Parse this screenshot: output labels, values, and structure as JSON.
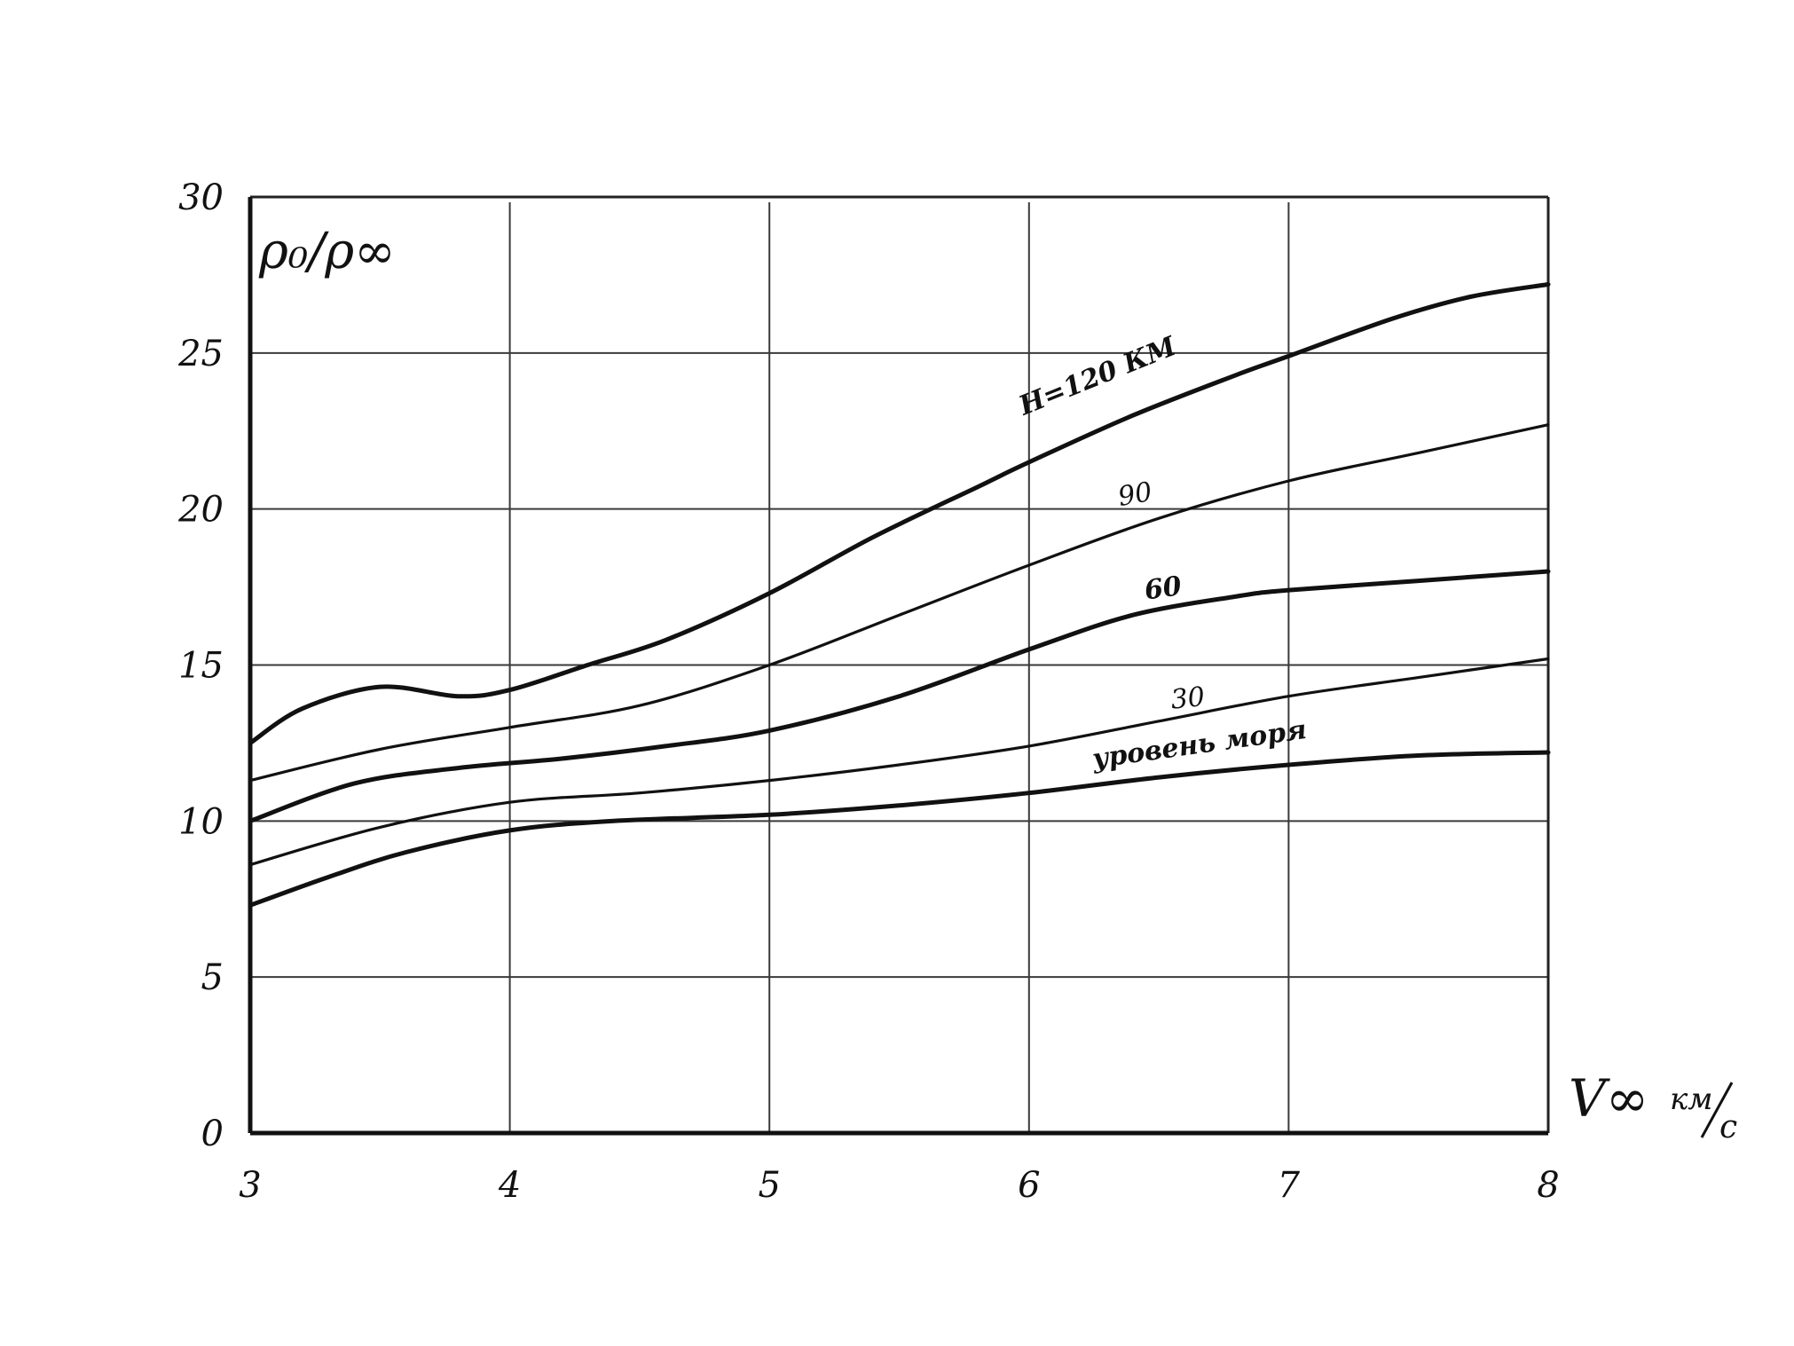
{
  "chart_data": {
    "type": "line",
    "title": "",
    "ylabel": "ρ₀/ρ∞",
    "xlabel": "V∞ км/с",
    "xlabel_main": "V∞",
    "xlabel_unit_top": "км",
    "xlabel_unit_bottom": "с",
    "xlim": [
      3,
      8
    ],
    "ylim": [
      0,
      30
    ],
    "x_ticks": [
      3,
      4,
      5,
      6,
      7,
      8
    ],
    "x_tick_labels": [
      "3",
      "4",
      "5",
      "6",
      "7",
      "8"
    ],
    "y_ticks": [
      0,
      5,
      10,
      15,
      20,
      25,
      30
    ],
    "y_tick_labels": [
      "0",
      "5",
      "10",
      "15",
      "20",
      "25",
      "30"
    ],
    "grid": true,
    "series": [
      {
        "name": "H=120 КМ",
        "weight": "bold",
        "x": [
          3.0,
          3.2,
          3.5,
          3.8,
          4.0,
          4.3,
          4.6,
          5.0,
          5.4,
          5.8,
          6.0,
          6.4,
          6.8,
          7.0,
          7.4,
          7.7,
          8.0
        ],
        "y": [
          12.5,
          13.6,
          14.3,
          14.0,
          14.2,
          15.0,
          15.8,
          17.3,
          19.1,
          20.7,
          21.5,
          23.0,
          24.3,
          24.9,
          26.1,
          26.8,
          27.2
        ]
      },
      {
        "name": "90",
        "weight": "thin",
        "x": [
          3.0,
          3.5,
          4.0,
          4.5,
          5.0,
          5.5,
          6.0,
          6.5,
          7.0,
          7.5,
          8.0
        ],
        "y": [
          11.3,
          12.3,
          13.0,
          13.7,
          15.0,
          16.6,
          18.2,
          19.7,
          20.9,
          21.8,
          22.7
        ]
      },
      {
        "name": "60",
        "weight": "bold",
        "x": [
          3.0,
          3.4,
          3.8,
          4.2,
          4.6,
          5.0,
          5.5,
          6.0,
          6.4,
          6.8,
          7.0,
          7.5,
          8.0
        ],
        "y": [
          10.0,
          11.2,
          11.7,
          12.0,
          12.4,
          12.9,
          14.0,
          15.5,
          16.6,
          17.2,
          17.4,
          17.7,
          18.0
        ]
      },
      {
        "name": "30",
        "weight": "thin",
        "x": [
          3.0,
          3.5,
          4.0,
          4.5,
          5.0,
          5.5,
          6.0,
          6.5,
          7.0,
          7.5,
          8.0
        ],
        "y": [
          8.6,
          9.8,
          10.6,
          10.9,
          11.3,
          11.8,
          12.4,
          13.2,
          14.0,
          14.6,
          15.2
        ]
      },
      {
        "name": "уровень моря",
        "weight": "bold",
        "x": [
          3.0,
          3.3,
          3.6,
          4.0,
          4.4,
          5.0,
          5.5,
          6.0,
          6.5,
          7.0,
          7.5,
          8.0
        ],
        "y": [
          7.3,
          8.2,
          9.0,
          9.7,
          10.0,
          10.2,
          10.5,
          10.9,
          11.4,
          11.8,
          12.1,
          12.2
        ]
      }
    ]
  }
}
